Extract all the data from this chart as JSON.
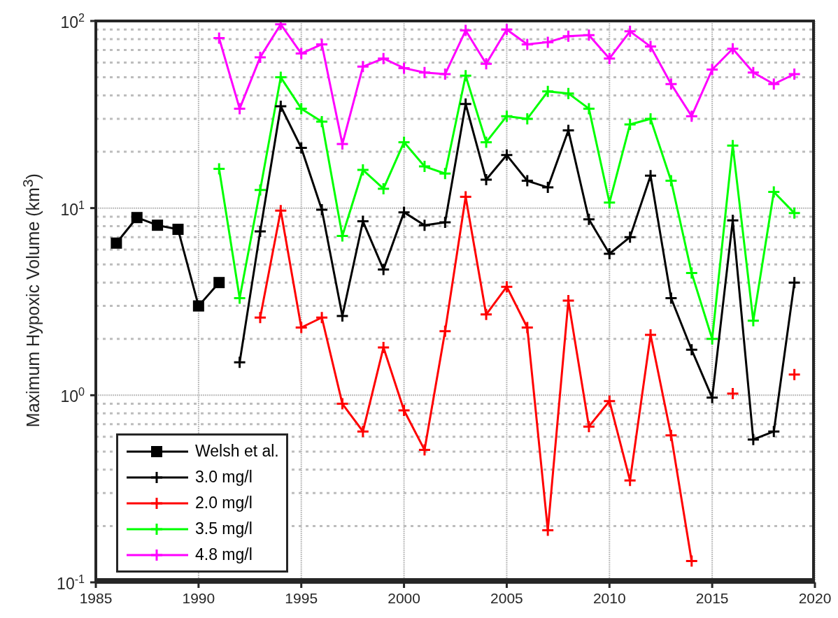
{
  "chart_data": {
    "type": "line",
    "ylabel": "Maximum Hypoxic Volume (km$^{3}$)",
    "log": "y",
    "grid": true,
    "legend": "bottom left",
    "line_style": "solid",
    "xlim": [
      1985,
      2020
    ],
    "xticks": [
      1985,
      1990,
      1995,
      2000,
      2005,
      2010,
      2015,
      2020
    ],
    "ylim": [
      0.1,
      100
    ],
    "yticks": [
      {
        "value": 0.1,
        "label": "10$^{-1}$"
      },
      {
        "value": 1,
        "label": "10$^{0}$"
      },
      {
        "value": 10,
        "label": "10$^{1}$"
      },
      {
        "value": 100,
        "label": "10$^{2}$"
      }
    ],
    "series": [
      {
        "name": "Welsh et al.",
        "color": "#000000",
        "marker": "square",
        "x": [
          1986,
          1987,
          1988,
          1989,
          1990,
          1991
        ],
        "values": [
          6.5,
          8.9,
          8.1,
          7.7,
          3.0,
          4.0
        ]
      },
      {
        "name": "3.0 mg/l",
        "color": "#000000",
        "marker": "cross",
        "x": [
          1992,
          1993,
          1994,
          1995,
          1996,
          1997,
          1998,
          1999,
          2000,
          2001,
          2002,
          2003,
          2004,
          2005,
          2006,
          2007,
          2008,
          2009,
          2010,
          2011,
          2012,
          2013,
          2014,
          2015,
          2016,
          2017,
          2018,
          2019
        ],
        "values": [
          1.5,
          7.5,
          35,
          21,
          9.8,
          2.65,
          8.5,
          4.7,
          9.5,
          8.1,
          8.4,
          36,
          14.2,
          19.2,
          14,
          12.9,
          26,
          8.7,
          5.7,
          7.0,
          14.9,
          3.3,
          1.75,
          0.97,
          8.6,
          0.58,
          0.64,
          4.0
        ]
      },
      {
        "name": "2.0 mg/l",
        "color": "#ff0000",
        "marker": "cross",
        "x": [
          1993,
          1994,
          1995,
          1996,
          1997,
          1998,
          1999,
          2000,
          2001,
          2002,
          2003,
          2004,
          2005,
          2006,
          2007,
          2008,
          2009,
          2010,
          2011,
          2012,
          2013,
          2014,
          2015,
          2016,
          2017,
          2018,
          2019
        ],
        "values": [
          2.6,
          9.7,
          2.3,
          2.6,
          0.9,
          0.64,
          1.8,
          0.83,
          0.51,
          2.2,
          11.5,
          2.7,
          3.8,
          2.3,
          0.19,
          3.2,
          0.68,
          0.93,
          0.35,
          2.1,
          0.61,
          0.13,
          null,
          1.02,
          null,
          null,
          1.29
        ]
      },
      {
        "name": "3.5 mg/l",
        "color": "#00ff00",
        "marker": "cross",
        "x": [
          1991,
          1992,
          1993,
          1994,
          1995,
          1996,
          1997,
          1998,
          1999,
          2000,
          2001,
          2002,
          2003,
          2004,
          2005,
          2006,
          2007,
          2008,
          2009,
          2010,
          2011,
          2012,
          2013,
          2014,
          2015,
          2016,
          2017,
          2018,
          2019
        ],
        "values": [
          16.2,
          3.3,
          12.5,
          50,
          34,
          29,
          7.1,
          16,
          12.7,
          22.5,
          16.7,
          15.3,
          51,
          22.5,
          31,
          30,
          42,
          41,
          34,
          10.7,
          28,
          30,
          14,
          4.5,
          2.0,
          21.6,
          2.5,
          12.2,
          9.4
        ]
      },
      {
        "name": "4.8 mg/l",
        "color": "#ff00ff",
        "marker": "cross",
        "x": [
          1991,
          1992,
          1993,
          1994,
          1995,
          1996,
          1997,
          1998,
          1999,
          2000,
          2001,
          2002,
          2003,
          2004,
          2005,
          2006,
          2007,
          2008,
          2009,
          2010,
          2011,
          2012,
          2013,
          2014,
          2015,
          2016,
          2017,
          2018,
          2019
        ],
        "values": [
          81,
          34,
          64,
          96,
          67,
          75,
          22,
          57,
          63,
          56,
          53,
          52,
          89,
          59,
          90,
          75,
          77,
          83,
          84,
          63,
          88,
          73,
          46,
          31,
          55,
          71,
          53,
          46,
          52
        ]
      }
    ]
  }
}
